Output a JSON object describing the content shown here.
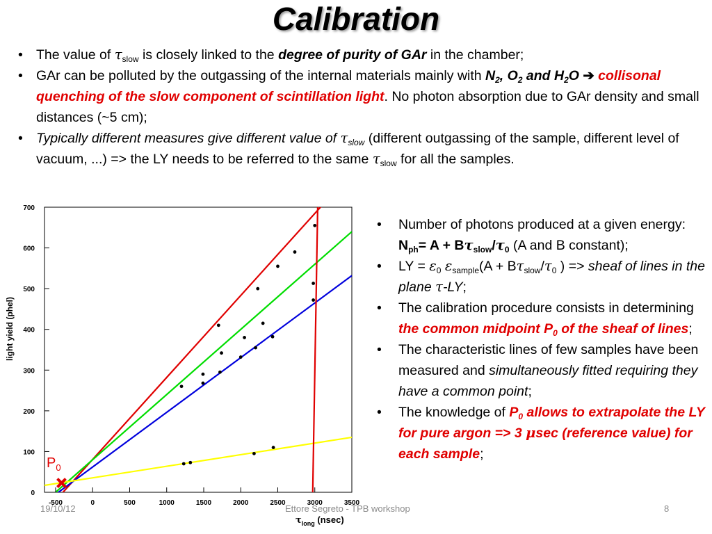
{
  "title": "Calibration",
  "bullets": [
    {
      "parts": [
        {
          "t": "The value of "
        },
        {
          "t": "τ",
          "c": "sym"
        },
        {
          "t": "slow",
          "c": "sub"
        },
        {
          "t": " is closely linked to the "
        },
        {
          "t": "degree of purity of GAr",
          "c": "bi"
        },
        {
          "t": " in the chamber;"
        }
      ]
    },
    {
      "parts": [
        {
          "t": "GAr can be polluted by the outgassing of the internal materials mainly with "
        },
        {
          "t": "N",
          "c": "bi"
        },
        {
          "t": "2",
          "c": "sub bi"
        },
        {
          "t": ", O",
          "c": "bi"
        },
        {
          "t": "2",
          "c": "sub bi"
        },
        {
          "t": " and H",
          "c": "bi"
        },
        {
          "t": "2",
          "c": "sub bi"
        },
        {
          "t": "O",
          "c": "bi"
        },
        {
          "t": " ➔ ",
          "c": "bo"
        },
        {
          "t": "collisonal quenching of the slow component of scintillation light",
          "c": "red"
        },
        {
          "t": ". No photon absorption due to GAr density and small distances (~5 cm);"
        }
      ]
    },
    {
      "parts": [
        {
          "t": "Typically different measures give different value of ",
          "c": "it"
        },
        {
          "t": "τ",
          "c": "sym"
        },
        {
          "t": "slow",
          "c": "sub it"
        },
        {
          "t": "  (different outgassing of the sample, different level of vacuum, ...) => the LY needs to be referred to the same "
        },
        {
          "t": "τ",
          "c": "sym"
        },
        {
          "t": "slow",
          "c": "sub"
        },
        {
          "t": " for all the samples."
        }
      ]
    }
  ],
  "right_bullets": [
    {
      "parts": [
        {
          "t": "Number of photons produced at a given energy:  "
        },
        {
          "t": "N",
          "c": "bo"
        },
        {
          "t": "ph",
          "c": "sub bo"
        },
        {
          "t": "= A + B",
          "c": "bo"
        },
        {
          "t": "τ",
          "c": "sym bo"
        },
        {
          "t": "slow",
          "c": "sub bo"
        },
        {
          "t": "/",
          "c": "bo"
        },
        {
          "t": "τ",
          "c": "sym bo"
        },
        {
          "t": "0",
          "c": "sub bo"
        },
        {
          "t": "  (A and B constant);"
        }
      ]
    },
    {
      "parts": [
        {
          "t": "LY = "
        },
        {
          "t": "ε",
          "c": "sym"
        },
        {
          "t": "0",
          "c": "sub"
        },
        {
          "t": " "
        },
        {
          "t": "ε",
          "c": "sym"
        },
        {
          "t": "sample",
          "c": "sub"
        },
        {
          "t": "(A + B"
        },
        {
          "t": "τ",
          "c": "sym"
        },
        {
          "t": "slow",
          "c": "sub"
        },
        {
          "t": "/"
        },
        {
          "t": "τ",
          "c": "sym"
        },
        {
          "t": "0",
          "c": "sub"
        },
        {
          "t": " ) => "
        },
        {
          "t": "sheaf of lines in the plane ",
          "c": "it"
        },
        {
          "t": "τ",
          "c": "sym"
        },
        {
          "t": "-LY",
          "c": "it"
        },
        {
          "t": ";"
        }
      ]
    },
    {
      "parts": [
        {
          "t": "The calibration procedure consists in determining "
        },
        {
          "t": "the common midpoint P",
          "c": "red"
        },
        {
          "t": "0",
          "c": "sub red"
        },
        {
          "t": " of the sheaf of lines",
          "c": "red"
        },
        {
          "t": ";"
        }
      ]
    },
    {
      "parts": [
        {
          "t": "The characteristic lines of few  samples have been measured and "
        },
        {
          "t": "simultaneously fitted requiring they have a common point",
          "c": "it"
        },
        {
          "t": ";"
        }
      ]
    },
    {
      "parts": [
        {
          "t": "The knowledge of "
        },
        {
          "t": "P",
          "c": "red"
        },
        {
          "t": "0",
          "c": "sub red"
        },
        {
          "t": " allows to extrapolate the LY for pure argon => 3 ",
          "c": "red"
        },
        {
          "t": "μ",
          "c": "red sym"
        },
        {
          "t": "sec (reference value) for each sample",
          "c": "red"
        },
        {
          "t": ";"
        }
      ]
    }
  ],
  "chart_data": {
    "type": "scatter",
    "xlabel_symbol": "τ",
    "xlabel_sub": "long",
    "xlabel_unit": " (nsec)",
    "ylabel": "light yield (phel)",
    "xlim": [
      -650,
      3500
    ],
    "ylim": [
      0,
      700
    ],
    "xticks": [
      -500,
      0,
      500,
      1000,
      1500,
      2000,
      2500,
      3000,
      3500
    ],
    "yticks": [
      0,
      100,
      200,
      300,
      400,
      500,
      600,
      700
    ],
    "point_label": "P",
    "point_label_sub": "0",
    "p0": {
      "x": -420,
      "y": 23
    },
    "fit_lines": [
      {
        "color": "#e00000",
        "x1": -500,
        "y1": -20,
        "x2": 3300,
        "y2": 745
      },
      {
        "color": "#00dd00",
        "x1": -500,
        "y1": 0,
        "x2": 3500,
        "y2": 640
      },
      {
        "color": "#0000dd",
        "x1": -500,
        "y1": -5,
        "x2": 3500,
        "y2": 532
      },
      {
        "color": "#ffff00",
        "x1": -650,
        "y1": 17,
        "x2": 3500,
        "y2": 135
      },
      {
        "color": "#e00000",
        "x1": 3040,
        "y1": 710,
        "x2": 2970,
        "y2": -20
      }
    ],
    "points": [
      {
        "x": 1200,
        "y": 260
      },
      {
        "x": 1490,
        "y": 290
      },
      {
        "x": 1490,
        "y": 268
      },
      {
        "x": 1700,
        "y": 410
      },
      {
        "x": 1720,
        "y": 295
      },
      {
        "x": 1740,
        "y": 342
      },
      {
        "x": 2000,
        "y": 332
      },
      {
        "x": 2050,
        "y": 380
      },
      {
        "x": 2200,
        "y": 355
      },
      {
        "x": 2230,
        "y": 500
      },
      {
        "x": 2300,
        "y": 415
      },
      {
        "x": 2430,
        "y": 382
      },
      {
        "x": 2500,
        "y": 555
      },
      {
        "x": 2730,
        "y": 590
      },
      {
        "x": 2980,
        "y": 513
      },
      {
        "x": 2980,
        "y": 472
      },
      {
        "x": 3000,
        "y": 655
      },
      {
        "x": 1230,
        "y": 70
      },
      {
        "x": 1320,
        "y": 73
      },
      {
        "x": 2180,
        "y": 95
      },
      {
        "x": 2440,
        "y": 110
      }
    ]
  },
  "footer": {
    "date": "19/10/12",
    "center": "Ettore Segreto - TPB workshop",
    "page": "8"
  }
}
